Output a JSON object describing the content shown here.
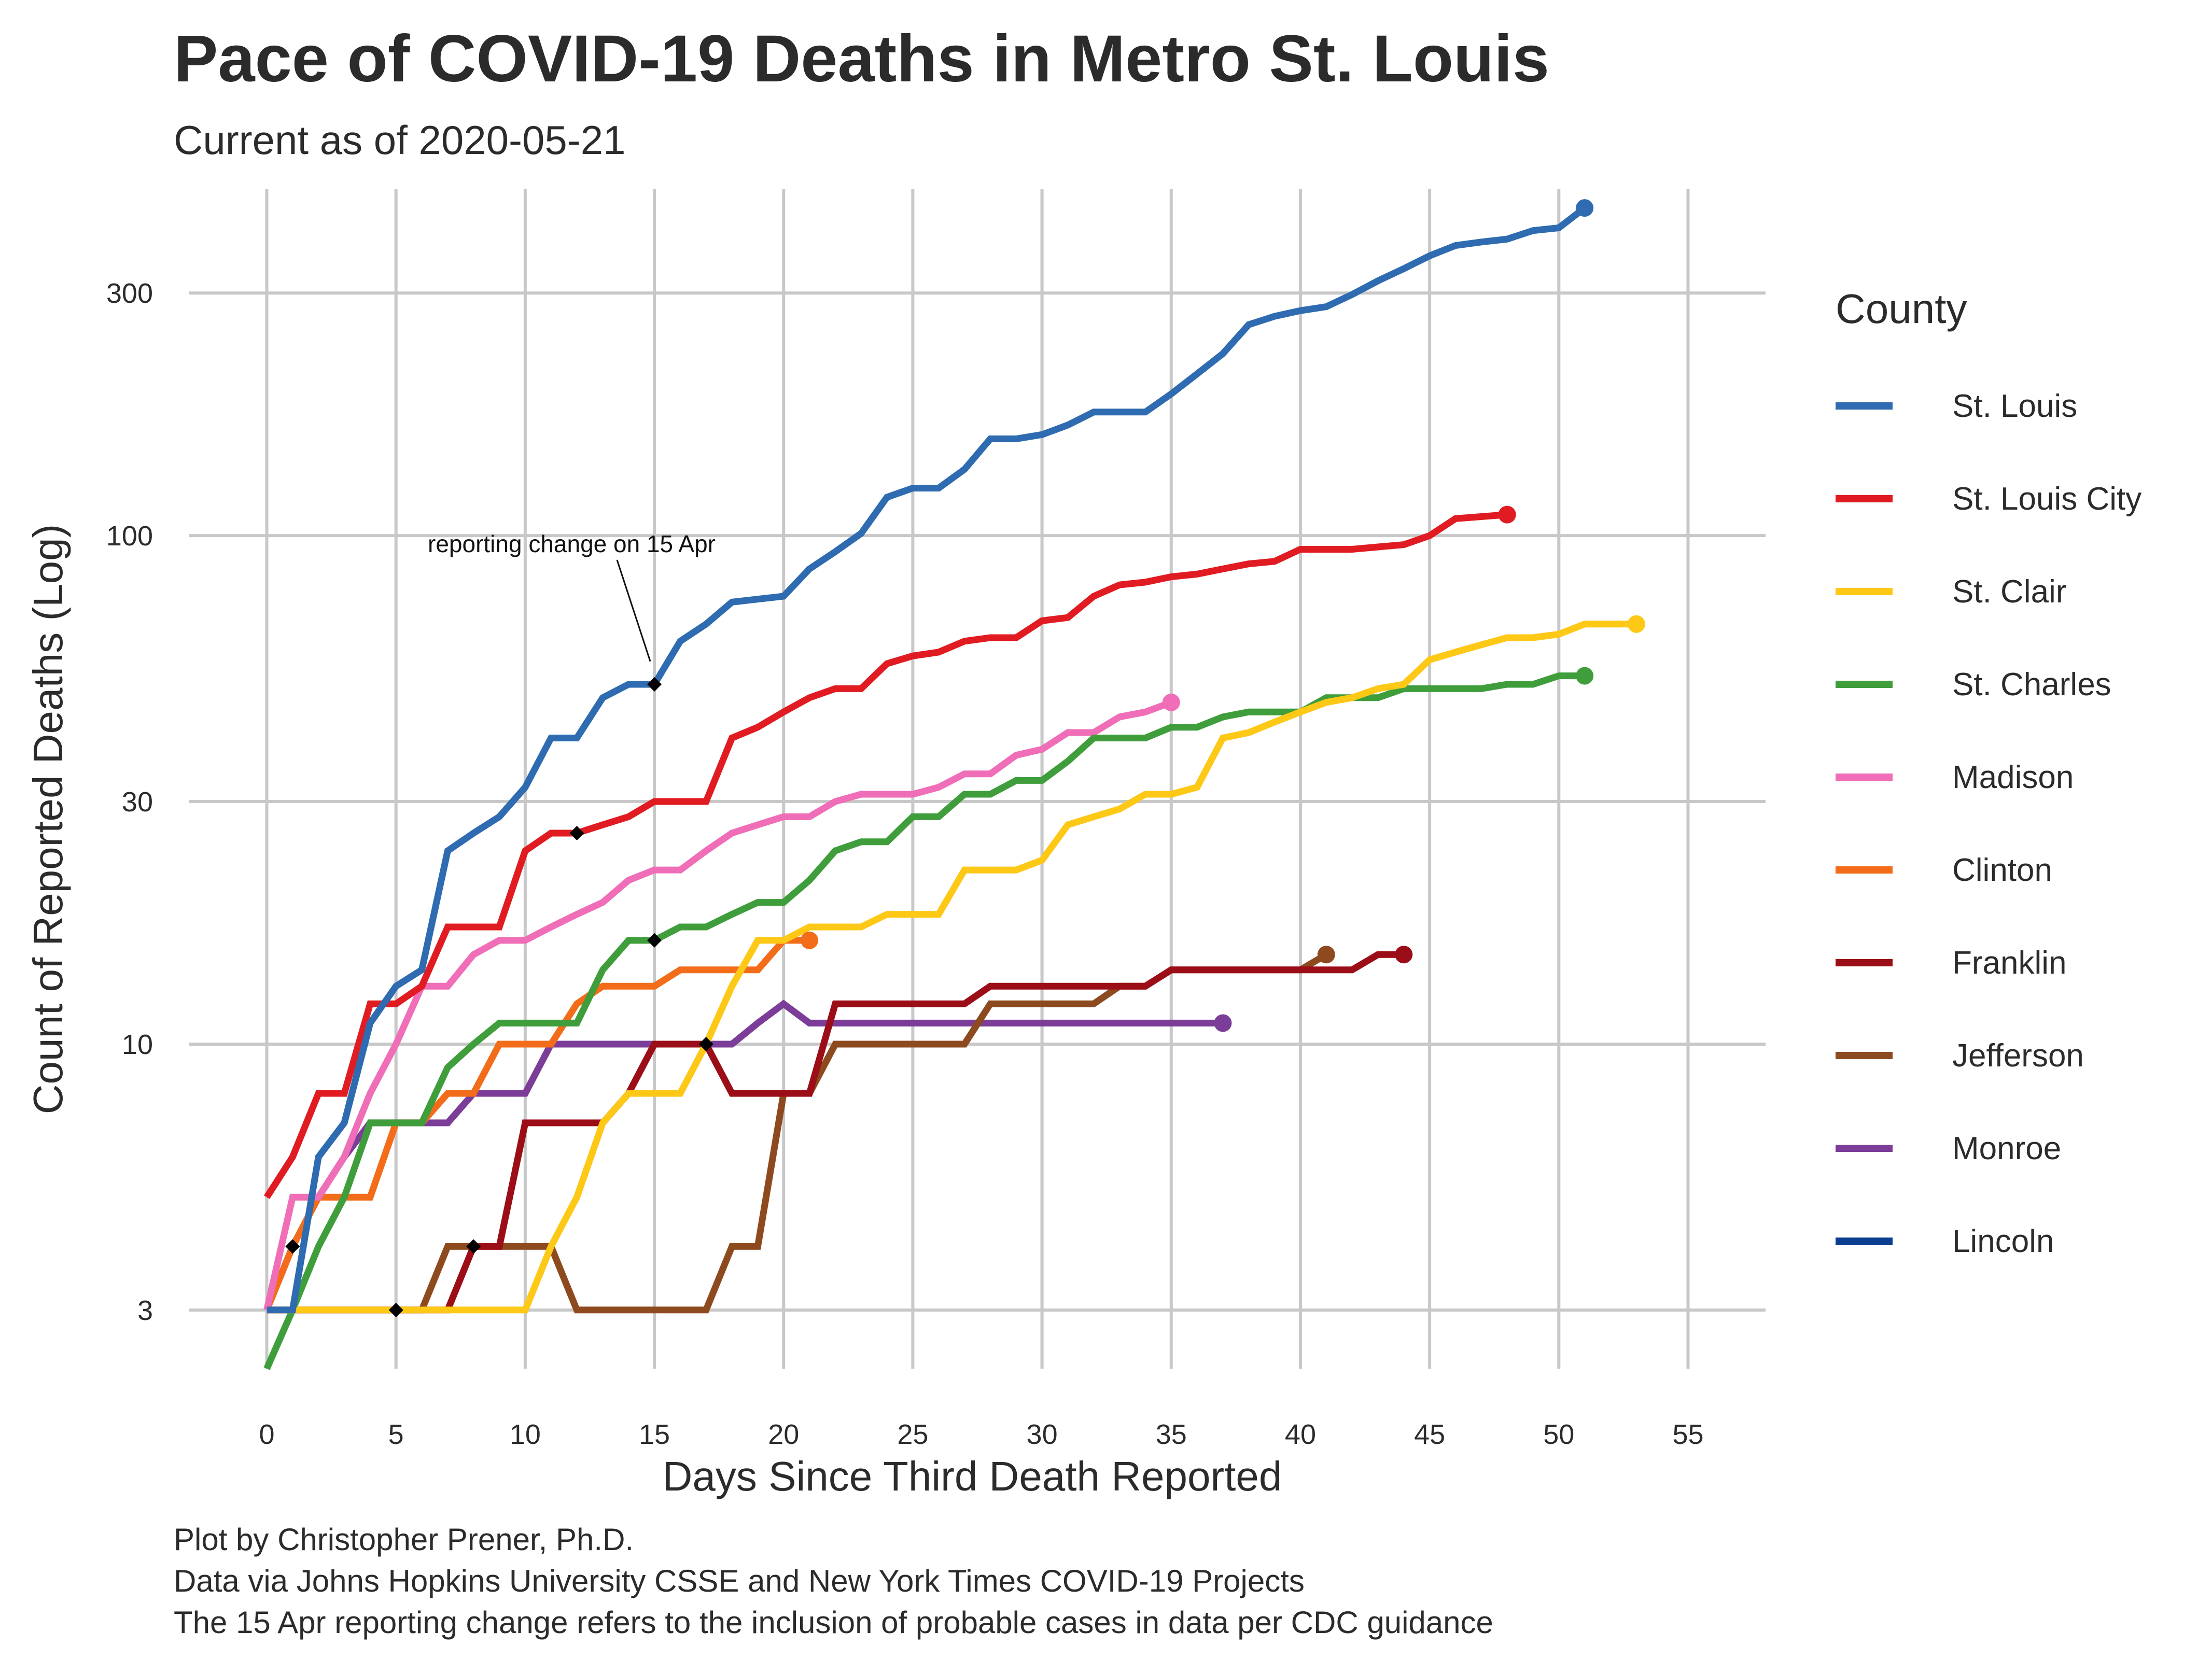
{
  "chart_data": {
    "type": "line",
    "title": "Pace of COVID-19 Deaths in Metro St. Louis",
    "subtitle": "Current as of 2020-05-21",
    "xlabel": "Days Since Third Death Reported",
    "ylabel": "Count of Reported Deaths (Log)",
    "x_scale": "linear",
    "y_scale": "log",
    "xlim": [
      -3,
      58
    ],
    "ylim": [
      2.3,
      480
    ],
    "x_ticks": [
      0,
      5,
      10,
      15,
      20,
      25,
      30,
      35,
      40,
      45,
      50,
      55
    ],
    "y_ticks": [
      3,
      10,
      30,
      100,
      300
    ],
    "grid": true,
    "legend_title": "County",
    "legend_position": "right",
    "annotation": {
      "text": "reporting change on 15 Apr",
      "x": 15,
      "y": 54
    },
    "series": [
      {
        "name": "St. Louis",
        "color": "#2e6bb0",
        "x": [
          0,
          1,
          2,
          3,
          4,
          5,
          6,
          7,
          8,
          9,
          10,
          11,
          12,
          13,
          14,
          15,
          16,
          17,
          18,
          19,
          20,
          21,
          22,
          23,
          24,
          25,
          26,
          27,
          28,
          29,
          30,
          31,
          32,
          33,
          34,
          35,
          36,
          37,
          38,
          39,
          40,
          41,
          42,
          43,
          44,
          45,
          46,
          47,
          48,
          49,
          50,
          51
        ],
        "y": [
          3,
          3,
          6,
          7,
          11,
          13,
          14,
          24,
          26,
          28,
          32,
          40,
          40,
          48,
          51,
          51,
          62,
          67,
          74,
          75,
          76,
          86,
          93,
          101,
          119,
          124,
          124,
          135,
          155,
          155,
          158,
          165,
          175,
          175,
          175,
          190,
          208,
          228,
          260,
          270,
          277,
          282,
          298,
          317,
          335,
          355,
          372,
          378,
          383,
          398,
          403,
          441
        ],
        "markers": [
          15
        ]
      },
      {
        "name": "St. Louis City",
        "color": "#e11b22",
        "x": [
          0,
          1,
          2,
          3,
          4,
          5,
          6,
          7,
          8,
          9,
          10,
          11,
          12,
          13,
          14,
          15,
          16,
          17,
          18,
          19,
          20,
          21,
          22,
          23,
          24,
          25,
          26,
          27,
          28,
          29,
          30,
          31,
          32,
          33,
          34,
          35,
          36,
          37,
          38,
          39,
          40,
          41,
          42,
          43,
          44,
          45,
          46,
          47,
          48
        ],
        "y": [
          5,
          6,
          8,
          8,
          12,
          12,
          13,
          17,
          17,
          17,
          24,
          26,
          26,
          27,
          28,
          30,
          30,
          30,
          40,
          42,
          45,
          48,
          50,
          50,
          56,
          58,
          59,
          62,
          63,
          63,
          68,
          69,
          76,
          80,
          81,
          83,
          84,
          86,
          88,
          89,
          94,
          94,
          94,
          95,
          96,
          100,
          108,
          109,
          110
        ],
        "markers": [
          12
        ]
      },
      {
        "name": "St. Clair",
        "color": "#fdc816",
        "x": [
          0,
          1,
          2,
          3,
          4,
          5,
          6,
          7,
          8,
          9,
          10,
          11,
          12,
          13,
          14,
          15,
          16,
          17,
          18,
          19,
          20,
          21,
          22,
          23,
          24,
          25,
          26,
          27,
          28,
          29,
          30,
          31,
          32,
          33,
          34,
          35,
          36,
          37,
          38,
          39,
          40,
          41,
          42,
          43,
          44,
          45,
          46,
          47,
          48,
          49,
          50,
          51,
          52,
          53
        ],
        "y": [
          3,
          3,
          3,
          3,
          3,
          3,
          3,
          3,
          3,
          3,
          3,
          4,
          5,
          7,
          8,
          8,
          8,
          10,
          13,
          16,
          16,
          17,
          17,
          17,
          18,
          18,
          18,
          22,
          22,
          22,
          23,
          27,
          28,
          29,
          31,
          31,
          32,
          40,
          41,
          43,
          45,
          47,
          48,
          50,
          51,
          57,
          59,
          61,
          63,
          63,
          64,
          67,
          67,
          67
        ],
        "markers": [
          17
        ]
      },
      {
        "name": "St. Charles",
        "color": "#3f9e3b",
        "x": [
          0,
          1,
          2,
          3,
          4,
          5,
          6,
          7,
          8,
          9,
          10,
          11,
          12,
          13,
          14,
          15,
          16,
          17,
          18,
          19,
          20,
          21,
          22,
          23,
          24,
          25,
          26,
          27,
          28,
          29,
          30,
          31,
          32,
          33,
          34,
          35,
          36,
          37,
          38,
          39,
          40,
          41,
          42,
          43,
          44,
          45,
          46,
          47,
          48,
          49,
          50,
          51
        ],
        "y": [
          2.3,
          3,
          4,
          5,
          7,
          7,
          7,
          9,
          10,
          11,
          11,
          11,
          11,
          14,
          16,
          16,
          17,
          17,
          18,
          19,
          19,
          21,
          24,
          25,
          25,
          28,
          28,
          31,
          31,
          33,
          33,
          36,
          40,
          40,
          40,
          42,
          42,
          44,
          45,
          45,
          45,
          48,
          48,
          48,
          50,
          50,
          50,
          50,
          51,
          51,
          53,
          53
        ],
        "markers": [
          15
        ]
      },
      {
        "name": "Madison",
        "color": "#ef6eb7",
        "x": [
          0,
          1,
          2,
          3,
          4,
          5,
          6,
          7,
          8,
          9,
          10,
          11,
          12,
          13,
          14,
          15,
          16,
          17,
          18,
          19,
          20,
          21,
          22,
          23,
          24,
          25,
          26,
          27,
          28,
          29,
          30,
          31,
          32,
          33,
          34,
          35
        ],
        "y": [
          3,
          5,
          5,
          6,
          8,
          10,
          13,
          13,
          15,
          16,
          16,
          17,
          18,
          19,
          21,
          22,
          22,
          24,
          26,
          27,
          28,
          28,
          30,
          31,
          31,
          31,
          32,
          34,
          34,
          37,
          38,
          41,
          41,
          44,
          45,
          47
        ]
      },
      {
        "name": "Clinton",
        "color": "#f26c1a",
        "x": [
          0,
          1,
          2,
          3,
          4,
          5,
          6,
          7,
          8,
          9,
          10,
          11,
          12,
          13,
          14,
          15,
          16,
          17,
          18,
          19,
          20,
          21
        ],
        "y": [
          3,
          4,
          5,
          5,
          5,
          7,
          7,
          8,
          8,
          10,
          10,
          10,
          12,
          13,
          13,
          13,
          14,
          14,
          14,
          14,
          16,
          16
        ]
      },
      {
        "name": "Franklin",
        "color": "#9b0d17",
        "x": [
          0,
          1,
          2,
          3,
          4,
          5,
          6,
          7,
          8,
          9,
          10,
          11,
          12,
          13,
          14,
          15,
          16,
          17,
          18,
          19,
          20,
          21,
          22,
          23,
          24,
          25,
          26,
          27,
          28,
          29,
          30,
          31,
          32,
          33,
          34,
          35,
          36,
          37,
          38,
          39,
          40,
          41,
          42,
          43,
          44
        ],
        "y": [
          3,
          3,
          3,
          3,
          3,
          3,
          3,
          3,
          4,
          4,
          7,
          7,
          7,
          7,
          8,
          10,
          10,
          10,
          8,
          8,
          8,
          8,
          12,
          12,
          12,
          12,
          12,
          12,
          13,
          13,
          13,
          13,
          13,
          13,
          13,
          14,
          14,
          14,
          14,
          14,
          14,
          14,
          14,
          15,
          15
        ],
        "markers": [
          8
        ]
      },
      {
        "name": "Jefferson",
        "color": "#8e4a1f",
        "x": [
          0,
          1,
          2,
          3,
          4,
          5,
          6,
          7,
          8,
          9,
          10,
          11,
          12,
          13,
          14,
          15,
          16,
          17,
          18,
          19,
          20,
          21,
          22,
          23,
          24,
          25,
          26,
          27,
          28,
          29,
          30,
          31,
          32,
          33,
          34,
          35,
          36,
          37,
          38,
          39,
          40,
          41
        ],
        "y": [
          3,
          3,
          3,
          3,
          3,
          3,
          3,
          4,
          4,
          4,
          4,
          4,
          3,
          3,
          3,
          3,
          3,
          3,
          4,
          4,
          8,
          8,
          10,
          10,
          10,
          10,
          10,
          10,
          12,
          12,
          12,
          12,
          12,
          13,
          13,
          14,
          14,
          14,
          14,
          14,
          14,
          15
        ],
        "markers": [
          5
        ]
      },
      {
        "name": "Monroe",
        "color": "#7b3d98",
        "x": [
          0,
          1,
          2,
          3,
          4,
          5,
          6,
          7,
          8,
          9,
          10,
          11,
          12,
          13,
          14,
          15,
          16,
          17,
          18,
          19,
          20,
          21,
          22,
          23,
          24,
          25,
          26,
          27,
          28,
          29,
          30,
          31,
          32,
          33,
          34,
          35,
          36,
          37
        ],
        "y": [
          3,
          4,
          5,
          6,
          7,
          7,
          7,
          7,
          8,
          8,
          8,
          10,
          10,
          10,
          10,
          10,
          10,
          10,
          10,
          11,
          12,
          11,
          11,
          11,
          11,
          11,
          11,
          11,
          11,
          11,
          11,
          11,
          11,
          11,
          11,
          11,
          11,
          11
        ],
        "markers": [
          1
        ]
      },
      {
        "name": "Lincoln",
        "color": "#0b3d91",
        "x": [],
        "y": []
      }
    ]
  },
  "caption": {
    "line1": "Plot by Christopher Prener, Ph.D.",
    "line2": "Data via Johns Hopkins University CSSE and New York Times COVID-19 Projects",
    "line3": "The 15 Apr reporting change refers to the inclusion of probable cases in data per CDC guidance"
  }
}
